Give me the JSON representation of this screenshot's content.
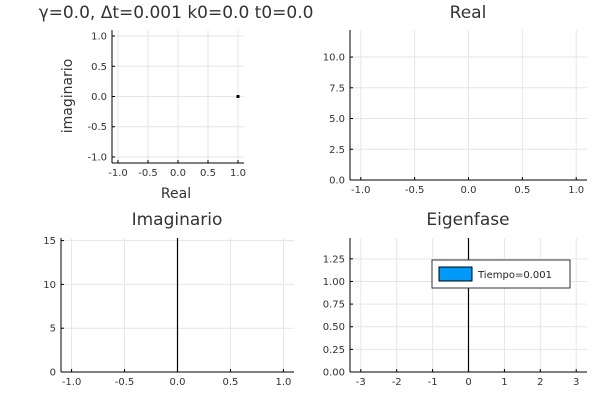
{
  "chart_data": [
    {
      "type": "scatter",
      "title": "γ=0.0,   Δt=0.001 k0=0.0 t0=0.0",
      "xlabel": "Real",
      "ylabel": "imaginario",
      "xlim": [
        -1.1,
        1.1
      ],
      "ylim": [
        -1.1,
        1.1
      ],
      "xticks": [
        -1.0,
        -0.5,
        0.0,
        0.5,
        1.0
      ],
      "yticks": [
        -1.0,
        -0.5,
        0.0,
        0.5,
        1.0
      ],
      "xtick_labels": [
        "-1.0",
        "-0.5",
        "0.0",
        "0.5",
        "1.0"
      ],
      "ytick_labels": [
        "-1.0",
        "-0.5",
        "0.0",
        "0.5",
        "1.0"
      ],
      "grid": true,
      "points": [
        {
          "x": 1.0,
          "y": 0.0
        }
      ]
    },
    {
      "type": "line",
      "title": "Real",
      "xlabel": "",
      "ylabel": "",
      "xlim": [
        -1.1,
        1.1
      ],
      "ylim": [
        0,
        12.2
      ],
      "xticks": [
        -1.0,
        -0.5,
        0.0,
        0.5,
        1.0
      ],
      "yticks": [
        0.0,
        2.5,
        5.0,
        7.5,
        10.0
      ],
      "xtick_labels": [
        "-1.0",
        "-0.5",
        "0.0",
        "0.5",
        "1.0"
      ],
      "ytick_labels": [
        "0.0",
        "2.5",
        "5.0",
        "7.5",
        "10.0"
      ],
      "grid": true,
      "series": []
    },
    {
      "type": "line",
      "title": "Imaginario",
      "xlabel": "",
      "ylabel": "",
      "xlim": [
        -1.1,
        1.1
      ],
      "ylim": [
        0,
        15.3
      ],
      "xticks": [
        -1.0,
        -0.5,
        0.0,
        0.5,
        1.0
      ],
      "yticks": [
        0,
        5,
        10,
        15
      ],
      "xtick_labels": [
        "-1.0",
        "-0.5",
        "0.0",
        "0.5",
        "1.0"
      ],
      "ytick_labels": [
        "0",
        "5",
        "10",
        "15"
      ],
      "grid": true,
      "series": [
        {
          "x": [
            0.0,
            0.0
          ],
          "y": [
            0,
            15.3
          ]
        }
      ]
    },
    {
      "type": "bar",
      "title": "Eigenfase",
      "xlabel": "",
      "ylabel": "",
      "xlim": [
        -3.3,
        3.3
      ],
      "ylim": [
        0,
        1.48
      ],
      "xticks": [
        -3,
        -2,
        -1,
        0,
        1,
        2,
        3
      ],
      "yticks": [
        0.0,
        0.25,
        0.5,
        0.75,
        1.0,
        1.25
      ],
      "xtick_labels": [
        "-3",
        "-2",
        "-1",
        "0",
        "1",
        "2",
        "3"
      ],
      "ytick_labels": [
        "0.00",
        "0.25",
        "0.50",
        "0.75",
        "1.00",
        "1.25"
      ],
      "grid": true,
      "legend": {
        "placement": "top-right",
        "entries": [
          {
            "name": "Tiempo=0.001",
            "color": "#009af9"
          }
        ]
      },
      "series": [
        {
          "name": "Tiempo=0.001",
          "x": [
            0.0,
            0.0
          ],
          "y": [
            0,
            1.48
          ]
        }
      ]
    }
  ],
  "colors": {
    "legend_patch": "#009af9",
    "axis": "#000000",
    "grid": "#e6e6e6"
  }
}
